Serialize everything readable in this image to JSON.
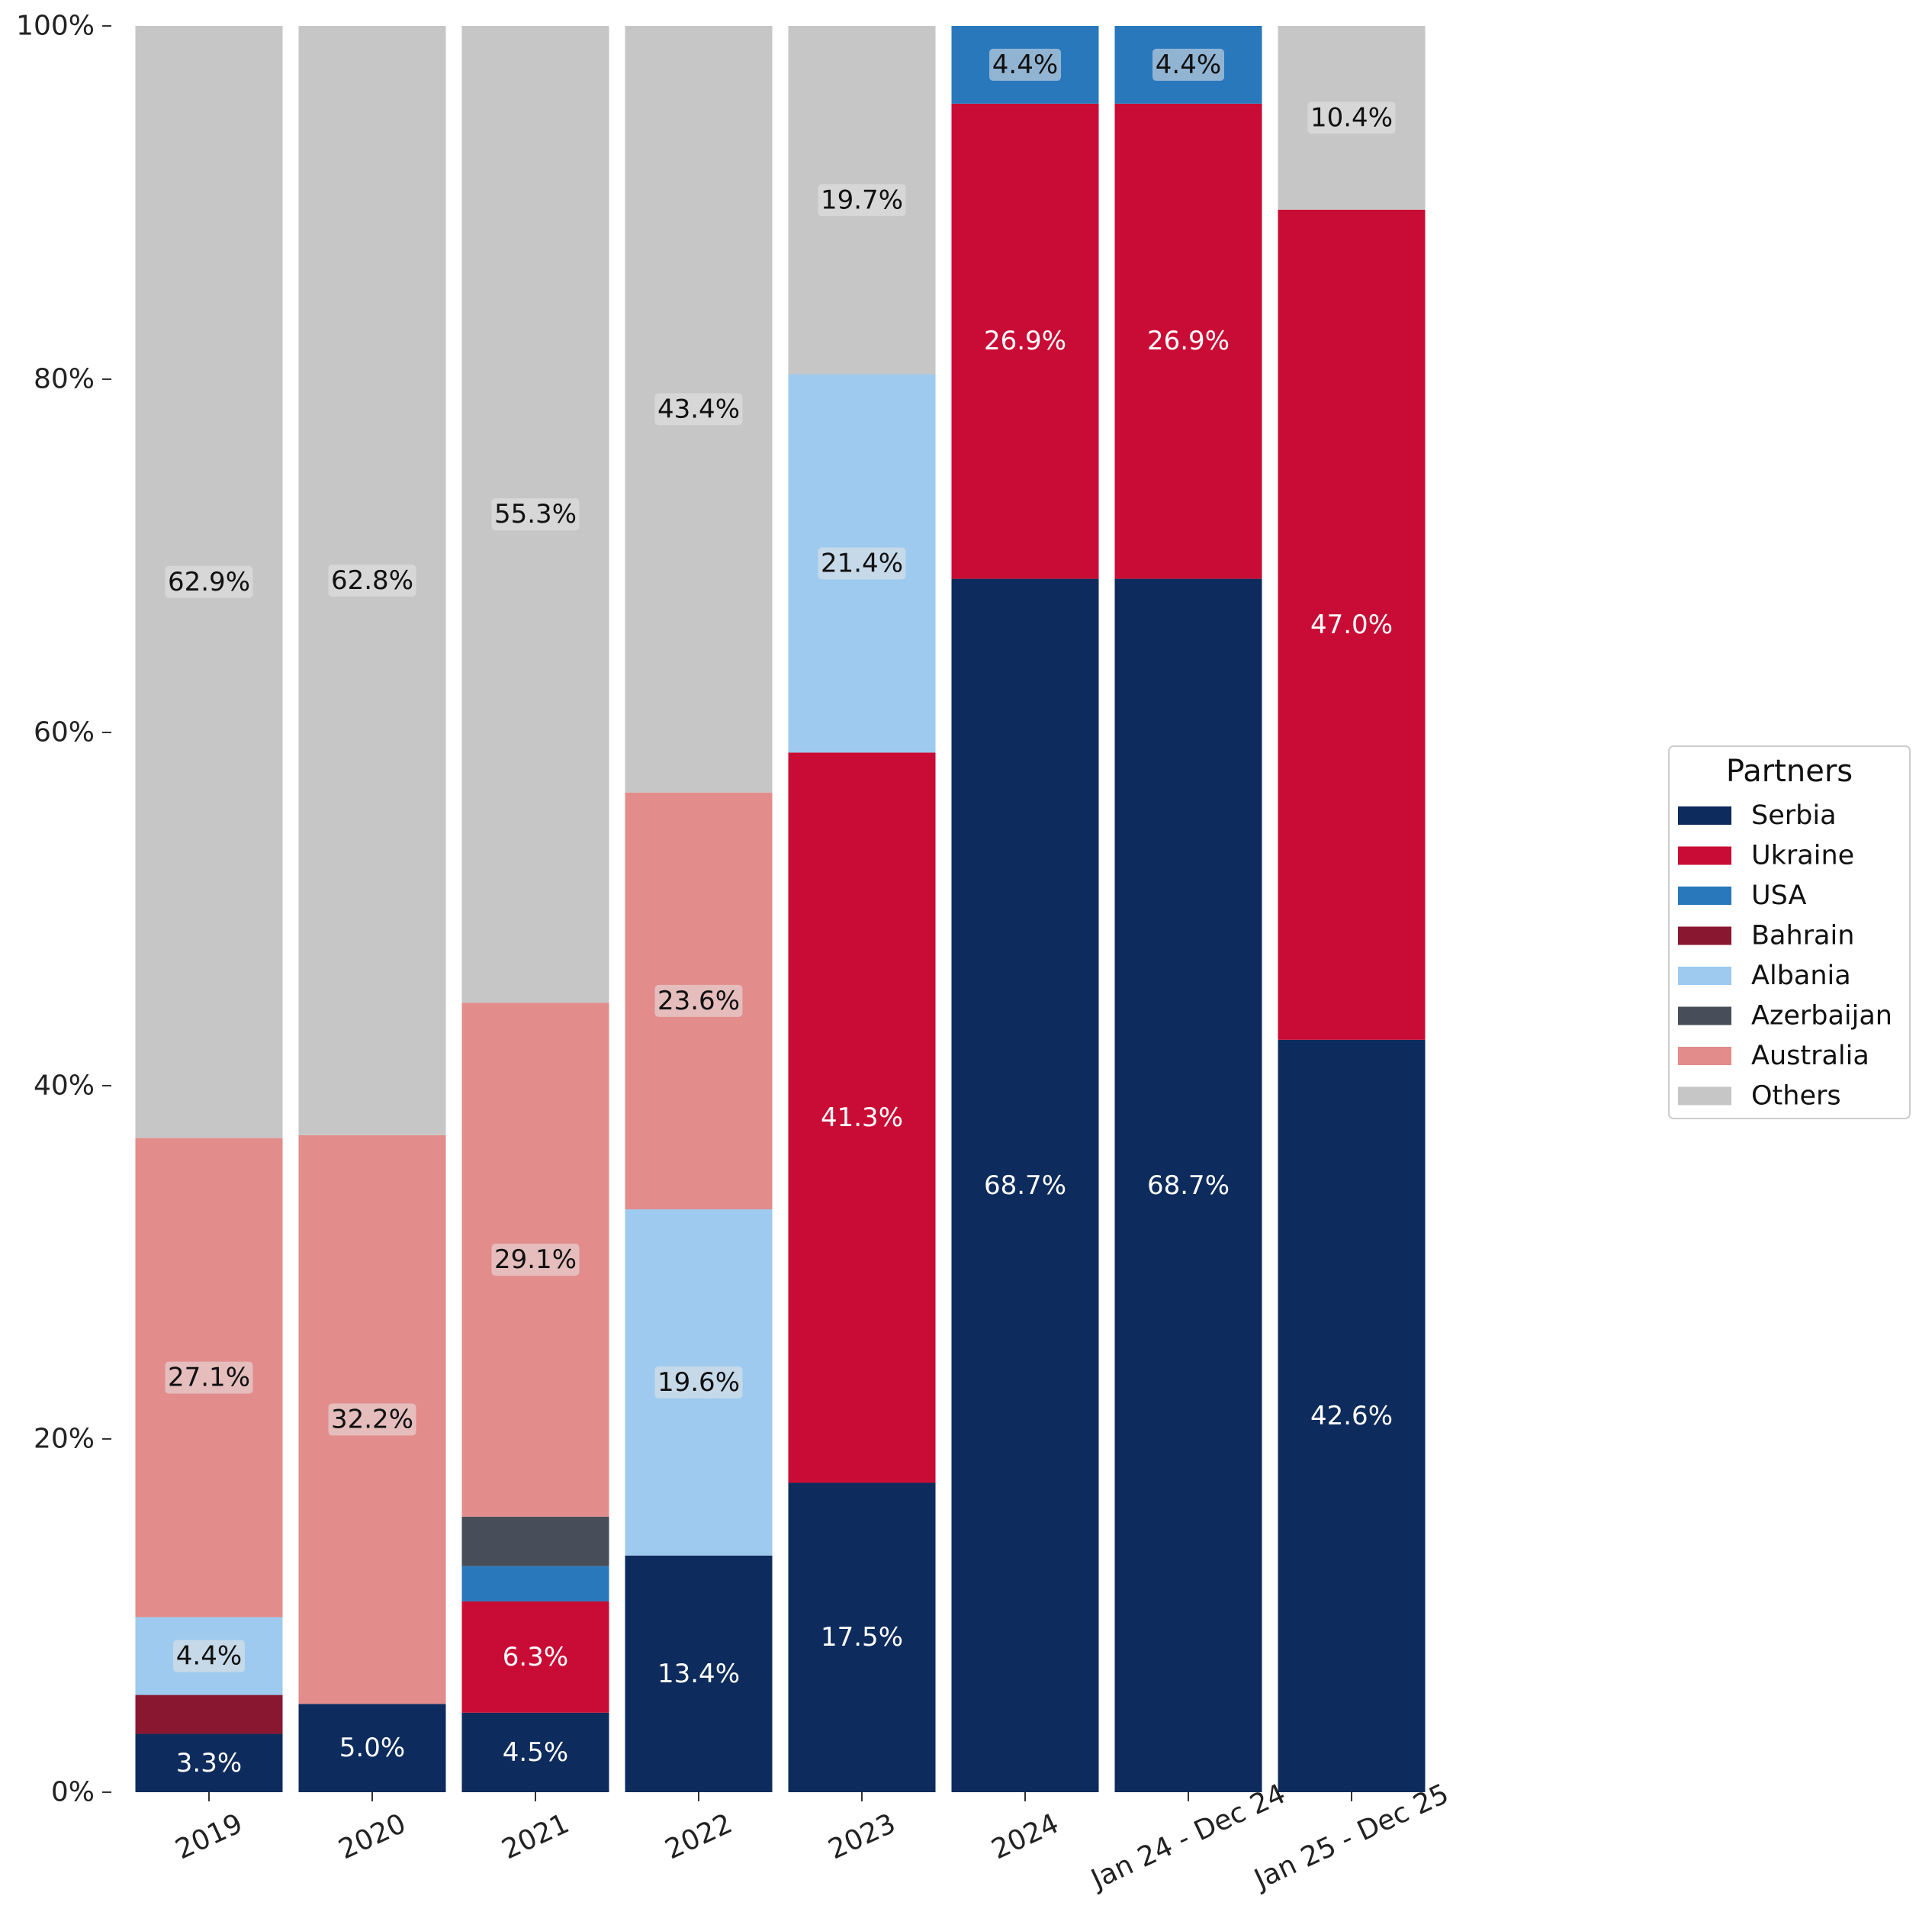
{
  "chart_data": {
    "type": "bar",
    "stacked": true,
    "normalized": true,
    "categories": [
      "2019",
      "2020",
      "2021",
      "2022",
      "2023",
      "2024",
      "Jan 24 - Dec 24",
      "Jan 25 - Dec 25"
    ],
    "series": [
      {
        "name": "Serbia",
        "color": "#0d2b5c",
        "label_color": "#ffffff",
        "values": [
          3.3,
          5.0,
          4.5,
          13.4,
          17.5,
          68.7,
          68.7,
          42.6
        ],
        "labels": [
          "3.3%",
          "5.0%",
          "4.5%",
          "13.4%",
          "17.5%",
          "68.7%",
          "68.7%",
          "42.6%"
        ]
      },
      {
        "name": "Ukraine",
        "color": "#c90c35",
        "label_color": "#ffffff",
        "values": [
          0,
          0,
          6.3,
          0,
          41.3,
          26.9,
          26.9,
          47.0
        ],
        "labels": [
          "",
          "",
          "6.3%",
          "",
          "41.3%",
          "26.9%",
          "26.9%",
          "47.0%"
        ]
      },
      {
        "name": "USA",
        "color": "#2a78bc",
        "label_color": "#111111",
        "label_box": true,
        "values": [
          0,
          0,
          2.0,
          0,
          0,
          4.4,
          4.4,
          0
        ],
        "labels": [
          "",
          "",
          "",
          "",
          "",
          "4.4%",
          "4.4%",
          ""
        ]
      },
      {
        "name": "Bahrain",
        "color": "#8a1730",
        "label_color": "#ffffff",
        "values": [
          2.2,
          0,
          0,
          0,
          0,
          0,
          0,
          0
        ],
        "labels": [
          "",
          "",
          "",
          "",
          "",
          "",
          "",
          ""
        ]
      },
      {
        "name": "Albania",
        "color": "#9dcaee",
        "label_color": "#111111",
        "label_box": true,
        "values": [
          4.4,
          0,
          0,
          19.6,
          21.4,
          0,
          0,
          0
        ],
        "labels": [
          "4.4%",
          "",
          "",
          "19.6%",
          "21.4%",
          "",
          "",
          ""
        ]
      },
      {
        "name": "Azerbaijan",
        "color": "#474e59",
        "label_color": "#ffffff",
        "values": [
          0,
          0,
          2.8,
          0,
          0,
          0,
          0,
          0
        ],
        "labels": [
          "",
          "",
          "",
          "",
          "",
          "",
          "",
          ""
        ]
      },
      {
        "name": "Australia",
        "color": "#e28c8b",
        "label_color": "#111111",
        "label_box": true,
        "values": [
          27.1,
          32.2,
          29.1,
          23.6,
          0,
          0,
          0,
          0
        ],
        "labels": [
          "27.1%",
          "32.2%",
          "29.1%",
          "23.6%",
          "",
          "",
          "",
          ""
        ]
      },
      {
        "name": "Others",
        "color": "#c6c6c6",
        "label_color": "#111111",
        "label_box": true,
        "values": [
          62.9,
          62.8,
          55.3,
          43.4,
          19.7,
          0,
          0,
          10.4
        ],
        "labels": [
          "62.9%",
          "62.8%",
          "55.3%",
          "43.4%",
          "19.7%",
          "",
          "",
          "10.4%"
        ]
      }
    ],
    "ylim": [
      0,
      100
    ],
    "y_ticks": [
      "0%",
      "20%",
      "40%",
      "60%",
      "80%",
      "100%"
    ],
    "y_tick_values": [
      0,
      20,
      40,
      60,
      80,
      100
    ],
    "xlabel": "",
    "ylabel": "",
    "grid": false,
    "legend": {
      "title": "Partners",
      "placement": "right"
    }
  }
}
